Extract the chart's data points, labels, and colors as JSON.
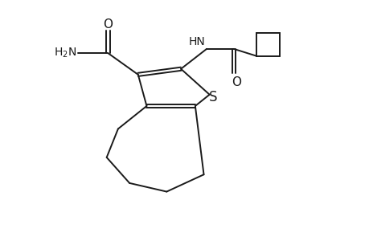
{
  "background_color": "#ffffff",
  "line_color": "#1a1a1a",
  "line_width": 1.4,
  "font_size": 10,
  "figsize": [
    4.6,
    3.0
  ],
  "dpi": 100,
  "xlim": [
    0,
    10
  ],
  "ylim": [
    0,
    6.5
  ]
}
